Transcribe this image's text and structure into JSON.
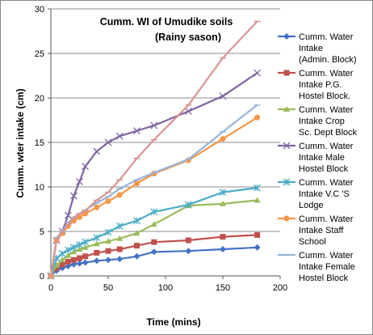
{
  "chart_data": {
    "type": "line",
    "title": "Cumm. WI of Umudike soils",
    "subtitle": "(Rainy sason)",
    "xlabel": "Time (mins)",
    "ylabel": "Cumm. wter intake (cm)",
    "xlim": [
      0,
      200
    ],
    "ylim": [
      0,
      30
    ],
    "x_ticks": [
      "0",
      "50",
      "100",
      "150",
      "200"
    ],
    "y_ticks": [
      "0",
      "5",
      "10",
      "15",
      "20",
      "25",
      "30"
    ],
    "grid": "horizontal",
    "legend_position": "right",
    "series": [
      {
        "name": "Cumm. Water Intake (Admin. Block)",
        "legend_lines": [
          "Cumm. Water",
          "Intake",
          "(Admin. Block)"
        ],
        "color": "#4472C4",
        "marker": "diamond",
        "points": [
          [
            0,
            0
          ],
          [
            5,
            0.6
          ],
          [
            10,
            0.9
          ],
          [
            15,
            1.1
          ],
          [
            20,
            1.3
          ],
          [
            25,
            1.4
          ],
          [
            30,
            1.5
          ],
          [
            40,
            1.7
          ],
          [
            50,
            1.8
          ],
          [
            60,
            1.9
          ],
          [
            75,
            2.2
          ],
          [
            90,
            2.7
          ],
          [
            120,
            2.8
          ],
          [
            150,
            3.0
          ],
          [
            180,
            3.2
          ]
        ]
      },
      {
        "name": "Cumm. Water Intake P.G. Hostel Block.",
        "legend_lines": [
          "Cumm. Water",
          "Intake      P.G.",
          "Hostel Block."
        ],
        "color": "#C0504D",
        "marker": "square",
        "points": [
          [
            0,
            0
          ],
          [
            5,
            0.9
          ],
          [
            10,
            1.3
          ],
          [
            15,
            1.6
          ],
          [
            20,
            1.8
          ],
          [
            25,
            2.0
          ],
          [
            30,
            2.2
          ],
          [
            40,
            2.6
          ],
          [
            50,
            2.8
          ],
          [
            60,
            3.0
          ],
          [
            75,
            3.4
          ],
          [
            90,
            3.8
          ],
          [
            120,
            4.0
          ],
          [
            150,
            4.4
          ],
          [
            180,
            4.6
          ]
        ]
      },
      {
        "name": "Cumm. Water Intake Crop Sc. Dept Block",
        "legend_lines": [
          "Cumm. Water",
          "Intake     Crop",
          "Sc. Dept Block"
        ],
        "color": "#9BBB59",
        "marker": "triangle",
        "points": [
          [
            0,
            0
          ],
          [
            5,
            1.2
          ],
          [
            10,
            1.8
          ],
          [
            15,
            2.3
          ],
          [
            20,
            2.7
          ],
          [
            25,
            3.0
          ],
          [
            30,
            3.2
          ],
          [
            40,
            3.6
          ],
          [
            50,
            3.9
          ],
          [
            60,
            4.2
          ],
          [
            75,
            4.8
          ],
          [
            90,
            5.8
          ],
          [
            120,
            7.9
          ],
          [
            150,
            8.1
          ],
          [
            180,
            8.5
          ]
        ]
      },
      {
        "name": "Cumm. Water Intake Male Hostel Block",
        "legend_lines": [
          "Cumm. Water",
          "Intake      Male",
          "Hostel Block"
        ],
        "color": "#8064A2",
        "marker": "x",
        "points": [
          [
            0,
            0
          ],
          [
            5,
            4.0
          ],
          [
            10,
            5.0
          ],
          [
            15,
            6.8
          ],
          [
            20,
            9.0
          ],
          [
            25,
            10.6
          ],
          [
            30,
            12.3
          ],
          [
            40,
            14.0
          ],
          [
            50,
            15.0
          ],
          [
            60,
            15.7
          ],
          [
            75,
            16.3
          ],
          [
            90,
            16.9
          ],
          [
            120,
            18.5
          ],
          [
            150,
            20.2
          ],
          [
            180,
            22.8
          ]
        ]
      },
      {
        "name": "Cumm. Water Intake V.C 'S Lodge",
        "legend_lines": [
          "Cumm. Water",
          "Intake     V.C 'S",
          "Lodge"
        ],
        "color": "#4BACC6",
        "marker": "asterisk",
        "points": [
          [
            0,
            0
          ],
          [
            5,
            2.0
          ],
          [
            10,
            2.5
          ],
          [
            15,
            2.9
          ],
          [
            20,
            3.2
          ],
          [
            25,
            3.5
          ],
          [
            30,
            3.8
          ],
          [
            40,
            4.3
          ],
          [
            50,
            4.9
          ],
          [
            60,
            5.6
          ],
          [
            75,
            6.2
          ],
          [
            90,
            7.2
          ],
          [
            120,
            8.0
          ],
          [
            150,
            9.4
          ],
          [
            180,
            9.9
          ]
        ]
      },
      {
        "name": "Cumm. Water Intake Staff School",
        "legend_lines": [
          "Cumm. Water",
          "Intake      Staff",
          "School"
        ],
        "color": "#F79646",
        "marker": "circle",
        "points": [
          [
            0,
            0
          ],
          [
            5,
            4.0
          ],
          [
            10,
            4.8
          ],
          [
            15,
            5.6
          ],
          [
            20,
            6.2
          ],
          [
            25,
            6.6
          ],
          [
            30,
            7.0
          ],
          [
            40,
            7.7
          ],
          [
            50,
            8.4
          ],
          [
            60,
            9.1
          ],
          [
            75,
            10.4
          ],
          [
            90,
            11.5
          ],
          [
            120,
            13.0
          ],
          [
            150,
            15.4
          ],
          [
            180,
            17.8
          ]
        ]
      },
      {
        "name": "Cumm. Water Intake Female Hostel Block",
        "legend_lines": [
          "Cumm. Water",
          "Intake   Female",
          "Hostel Block"
        ],
        "color": "#95B3D7",
        "marker": "plus",
        "points": [
          [
            0,
            0
          ],
          [
            5,
            4.3
          ],
          [
            10,
            5.0
          ],
          [
            15,
            6.0
          ],
          [
            20,
            6.6
          ],
          [
            25,
            7.0
          ],
          [
            30,
            7.4
          ],
          [
            40,
            8.2
          ],
          [
            50,
            8.9
          ],
          [
            60,
            9.8
          ],
          [
            75,
            10.8
          ],
          [
            90,
            11.6
          ],
          [
            120,
            13.1
          ],
          [
            150,
            16.2
          ],
          [
            180,
            19.2
          ]
        ]
      },
      {
        "name": "",
        "legend_lines": [],
        "color": "#D99594",
        "marker": "dash",
        "points": [
          [
            0,
            0
          ],
          [
            5,
            4.2
          ],
          [
            10,
            4.9
          ],
          [
            15,
            5.8
          ],
          [
            20,
            6.5
          ],
          [
            25,
            7.0
          ],
          [
            30,
            7.3
          ],
          [
            40,
            8.5
          ],
          [
            50,
            9.4
          ],
          [
            60,
            10.8
          ],
          [
            75,
            13.2
          ],
          [
            90,
            15.3
          ],
          [
            120,
            19.2
          ],
          [
            150,
            24.5
          ],
          [
            180,
            28.6
          ]
        ]
      }
    ]
  }
}
